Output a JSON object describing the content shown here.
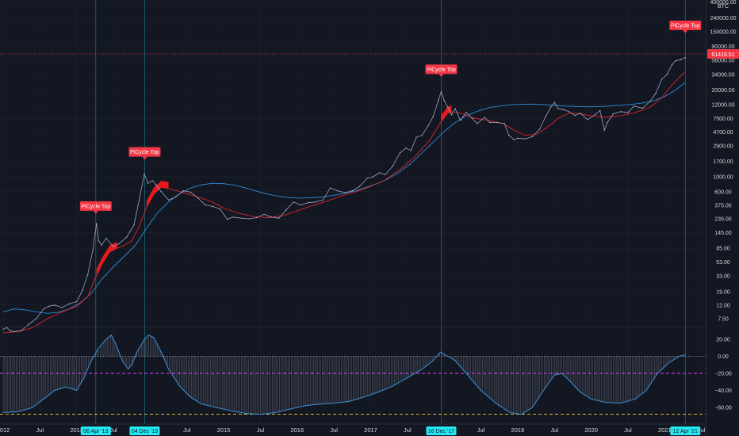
{
  "chart_data": {
    "type": "line",
    "symbol_unit": "BTC",
    "y_scale": "log",
    "current_price_label": "61419.51",
    "signal_label": "PiCycle Top",
    "y_ticks": [
      "400000.00",
      "240000.00",
      "150000.00",
      "90000.00",
      "56000.00",
      "34000.00",
      "20000.00",
      "12000.00",
      "7500.00",
      "4700.00",
      "2900.00",
      "1700.00",
      "1000.00",
      "600.00",
      "375.00",
      "235.00",
      "145.00",
      "85.00",
      "53.00",
      "33.00",
      "19.00",
      "12.00",
      "7.50"
    ],
    "x_ticks": [
      "2012",
      "Jul",
      "2013",
      "Jul",
      "2014",
      "Jul",
      "2015",
      "Jul",
      "2016",
      "Jul",
      "2017",
      "Jul",
      "2018",
      "Jul",
      "2019",
      "Jul",
      "2020",
      "Jul",
      "2021",
      "Jul"
    ],
    "pi_cycle_signals": [
      "06 Apr '13",
      "04 Dec '13",
      "16 Dec '17",
      "12 Apr '21"
    ],
    "series": [
      {
        "values": [
          [
            2012.0,
            5.2
          ],
          [
            2012.05,
            5.5
          ],
          [
            2012.1,
            4.9
          ],
          [
            2012.15,
            4.8
          ],
          [
            2012.25,
            5.0
          ],
          [
            2012.35,
            6.2
          ],
          [
            2012.45,
            7.5
          ],
          [
            2012.55,
            10.5
          ],
          [
            2012.62,
            11.5
          ],
          [
            2012.7,
            12.0
          ],
          [
            2012.8,
            11.0
          ],
          [
            2012.9,
            12.5
          ],
          [
            2013.0,
            13.5
          ],
          [
            2013.08,
            20
          ],
          [
            2013.15,
            34
          ],
          [
            2013.22,
            80
          ],
          [
            2013.27,
            200
          ],
          [
            2013.3,
            110
          ],
          [
            2013.34,
            95
          ],
          [
            2013.4,
            120
          ],
          [
            2013.5,
            90
          ],
          [
            2013.58,
            100
          ],
          [
            2013.68,
            125
          ],
          [
            2013.78,
            190
          ],
          [
            2013.85,
            450
          ],
          [
            2013.92,
            1100
          ],
          [
            2013.97,
            800
          ],
          [
            2014.03,
            880
          ],
          [
            2014.08,
            760
          ],
          [
            2014.15,
            600
          ],
          [
            2014.25,
            450
          ],
          [
            2014.35,
            500
          ],
          [
            2014.45,
            620
          ],
          [
            2014.55,
            590
          ],
          [
            2014.65,
            480
          ],
          [
            2014.75,
            380
          ],
          [
            2014.85,
            360
          ],
          [
            2014.95,
            330
          ],
          [
            2015.05,
            230
          ],
          [
            2015.12,
            250
          ],
          [
            2015.25,
            240
          ],
          [
            2015.35,
            235
          ],
          [
            2015.45,
            245
          ],
          [
            2015.55,
            275
          ],
          [
            2015.65,
            250
          ],
          [
            2015.75,
            240
          ],
          [
            2015.85,
            320
          ],
          [
            2015.95,
            420
          ],
          [
            2016.05,
            380
          ],
          [
            2016.15,
            410
          ],
          [
            2016.25,
            420
          ],
          [
            2016.35,
            450
          ],
          [
            2016.45,
            680
          ],
          [
            2016.55,
            620
          ],
          [
            2016.65,
            580
          ],
          [
            2016.75,
            620
          ],
          [
            2016.85,
            720
          ],
          [
            2016.95,
            950
          ],
          [
            2017.03,
            1000
          ],
          [
            2017.12,
            1150
          ],
          [
            2017.2,
            1080
          ],
          [
            2017.3,
            1450
          ],
          [
            2017.4,
            2300
          ],
          [
            2017.48,
            2700
          ],
          [
            2017.55,
            2500
          ],
          [
            2017.62,
            3900
          ],
          [
            2017.7,
            4200
          ],
          [
            2017.78,
            5800
          ],
          [
            2017.85,
            8000
          ],
          [
            2017.92,
            14000
          ],
          [
            2017.96,
            19000
          ],
          [
            2018.0,
            14000
          ],
          [
            2018.05,
            11000
          ],
          [
            2018.1,
            8500
          ],
          [
            2018.15,
            10500
          ],
          [
            2018.22,
            7000
          ],
          [
            2018.3,
            9200
          ],
          [
            2018.38,
            7500
          ],
          [
            2018.45,
            6300
          ],
          [
            2018.55,
            7800
          ],
          [
            2018.62,
            6500
          ],
          [
            2018.72,
            6500
          ],
          [
            2018.82,
            6300
          ],
          [
            2018.88,
            4200
          ],
          [
            2018.95,
            3600
          ],
          [
            2019.0,
            3800
          ],
          [
            2019.1,
            3700
          ],
          [
            2019.2,
            4000
          ],
          [
            2019.3,
            5200
          ],
          [
            2019.38,
            8000
          ],
          [
            2019.45,
            11000
          ],
          [
            2019.5,
            13000
          ],
          [
            2019.55,
            10500
          ],
          [
            2019.62,
            10200
          ],
          [
            2019.7,
            9500
          ],
          [
            2019.78,
            8300
          ],
          [
            2019.85,
            9000
          ],
          [
            2019.95,
            7200
          ],
          [
            2020.05,
            8500
          ],
          [
            2020.12,
            9800
          ],
          [
            2020.18,
            5000
          ],
          [
            2020.22,
            6500
          ],
          [
            2020.3,
            8800
          ],
          [
            2020.4,
            9500
          ],
          [
            2020.5,
            9200
          ],
          [
            2020.58,
            11500
          ],
          [
            2020.7,
            10700
          ],
          [
            2020.8,
            13500
          ],
          [
            2020.88,
            18000
          ],
          [
            2020.96,
            29000
          ],
          [
            2021.03,
            34000
          ],
          [
            2021.1,
            48000
          ],
          [
            2021.15,
            55000
          ],
          [
            2021.22,
            57000
          ],
          [
            2021.28,
            61419.51
          ]
        ]
      },
      {
        "values": [
          [
            2012.0,
            4.6
          ],
          [
            2012.2,
            4.8
          ],
          [
            2012.4,
            5.5
          ],
          [
            2012.6,
            7.5
          ],
          [
            2012.8,
            9.5
          ],
          [
            2013.0,
            11.5
          ],
          [
            2013.15,
            16
          ],
          [
            2013.25,
            30
          ],
          [
            2013.35,
            50
          ],
          [
            2013.45,
            75
          ],
          [
            2013.55,
            85
          ],
          [
            2013.65,
            95
          ],
          [
            2013.75,
            110
          ],
          [
            2013.85,
            180
          ],
          [
            2013.95,
            350
          ],
          [
            2014.05,
            550
          ],
          [
            2014.15,
            700
          ],
          [
            2014.3,
            650
          ],
          [
            2014.5,
            560
          ],
          [
            2014.7,
            480
          ],
          [
            2014.85,
            420
          ],
          [
            2015.0,
            340
          ],
          [
            2015.2,
            285
          ],
          [
            2015.4,
            255
          ],
          [
            2015.6,
            245
          ],
          [
            2015.8,
            260
          ],
          [
            2016.0,
            310
          ],
          [
            2016.2,
            370
          ],
          [
            2016.4,
            430
          ],
          [
            2016.6,
            520
          ],
          [
            2016.8,
            600
          ],
          [
            2017.0,
            720
          ],
          [
            2017.2,
            900
          ],
          [
            2017.4,
            1300
          ],
          [
            2017.6,
            2000
          ],
          [
            2017.8,
            3500
          ],
          [
            2017.95,
            6500
          ],
          [
            2018.05,
            9000
          ],
          [
            2018.12,
            9500
          ],
          [
            2018.25,
            8800
          ],
          [
            2018.4,
            7600
          ],
          [
            2018.6,
            7000
          ],
          [
            2018.8,
            6300
          ],
          [
            2018.95,
            5000
          ],
          [
            2019.1,
            4200
          ],
          [
            2019.25,
            4300
          ],
          [
            2019.4,
            5500
          ],
          [
            2019.55,
            7500
          ],
          [
            2019.7,
            9000
          ],
          [
            2019.85,
            8800
          ],
          [
            2020.0,
            8200
          ],
          [
            2020.2,
            7800
          ],
          [
            2020.4,
            8200
          ],
          [
            2020.6,
            9200
          ],
          [
            2020.8,
            11000
          ],
          [
            2020.95,
            15000
          ],
          [
            2021.1,
            24000
          ],
          [
            2021.28,
            38000
          ]
        ]
      },
      {
        "values": [
          [
            2012.0,
            9.5
          ],
          [
            2012.15,
            10.5
          ],
          [
            2012.3,
            10.2
          ],
          [
            2012.45,
            9.5
          ],
          [
            2012.6,
            9.0
          ],
          [
            2012.75,
            9.3
          ],
          [
            2012.9,
            10.5
          ],
          [
            2013.05,
            13
          ],
          [
            2013.2,
            18
          ],
          [
            2013.35,
            30
          ],
          [
            2013.5,
            45
          ],
          [
            2013.65,
            65
          ],
          [
            2013.8,
            95
          ],
          [
            2013.95,
            170
          ],
          [
            2014.1,
            290
          ],
          [
            2014.25,
            420
          ],
          [
            2014.4,
            560
          ],
          [
            2014.55,
            680
          ],
          [
            2014.7,
            760
          ],
          [
            2014.85,
            800
          ],
          [
            2015.0,
            790
          ],
          [
            2015.15,
            750
          ],
          [
            2015.3,
            680
          ],
          [
            2015.45,
            610
          ],
          [
            2015.6,
            550
          ],
          [
            2015.75,
            510
          ],
          [
            2015.9,
            490
          ],
          [
            2016.05,
            480
          ],
          [
            2016.2,
            485
          ],
          [
            2016.35,
            500
          ],
          [
            2016.5,
            530
          ],
          [
            2016.65,
            570
          ],
          [
            2016.8,
            620
          ],
          [
            2016.95,
            700
          ],
          [
            2017.1,
            800
          ],
          [
            2017.25,
            950
          ],
          [
            2017.4,
            1200
          ],
          [
            2017.55,
            1600
          ],
          [
            2017.7,
            2300
          ],
          [
            2017.85,
            3300
          ],
          [
            2018.0,
            4800
          ],
          [
            2018.15,
            6500
          ],
          [
            2018.3,
            8200
          ],
          [
            2018.45,
            9600
          ],
          [
            2018.6,
            10800
          ],
          [
            2018.75,
            11500
          ],
          [
            2018.9,
            12000
          ],
          [
            2019.05,
            12200
          ],
          [
            2019.2,
            12300
          ],
          [
            2019.35,
            12100
          ],
          [
            2019.5,
            11800
          ],
          [
            2019.65,
            11500
          ],
          [
            2019.8,
            11300
          ],
          [
            2019.95,
            11200
          ],
          [
            2020.1,
            11300
          ],
          [
            2020.25,
            11500
          ],
          [
            2020.4,
            11800
          ],
          [
            2020.55,
            12200
          ],
          [
            2020.7,
            12800
          ],
          [
            2020.85,
            13800
          ],
          [
            2021.0,
            16000
          ],
          [
            2021.15,
            20000
          ],
          [
            2021.28,
            26000
          ]
        ]
      }
    ],
    "oscillator": {
      "y_ticks": [
        "20.00",
        "0.00",
        "−20.00",
        "−40.00",
        "−60.00"
      ],
      "ylim": [
        -72,
        32
      ],
      "levels": [
        0,
        -20,
        -68
      ],
      "values": [
        [
          2012.0,
          -66
        ],
        [
          2012.2,
          -65
        ],
        [
          2012.4,
          -60
        ],
        [
          2012.55,
          -50
        ],
        [
          2012.7,
          -40
        ],
        [
          2012.85,
          -36
        ],
        [
          2013.0,
          -40
        ],
        [
          2013.1,
          -25
        ],
        [
          2013.2,
          -5
        ],
        [
          2013.3,
          10
        ],
        [
          2013.4,
          20
        ],
        [
          2013.47,
          25
        ],
        [
          2013.53,
          15
        ],
        [
          2013.62,
          -5
        ],
        [
          2013.7,
          -15
        ],
        [
          2013.75,
          -10
        ],
        [
          2013.82,
          5
        ],
        [
          2013.92,
          20
        ],
        [
          2013.98,
          25
        ],
        [
          2014.05,
          22
        ],
        [
          2014.15,
          5
        ],
        [
          2014.25,
          -15
        ],
        [
          2014.4,
          -35
        ],
        [
          2014.55,
          -48
        ],
        [
          2014.7,
          -56
        ],
        [
          2014.9,
          -60
        ],
        [
          2015.1,
          -64
        ],
        [
          2015.3,
          -67
        ],
        [
          2015.5,
          -68
        ],
        [
          2015.7,
          -66
        ],
        [
          2015.9,
          -62
        ],
        [
          2016.1,
          -58
        ],
        [
          2016.3,
          -56
        ],
        [
          2016.5,
          -55
        ],
        [
          2016.7,
          -53
        ],
        [
          2016.9,
          -48
        ],
        [
          2017.1,
          -42
        ],
        [
          2017.3,
          -35
        ],
        [
          2017.5,
          -25
        ],
        [
          2017.7,
          -15
        ],
        [
          2017.85,
          -5
        ],
        [
          2017.95,
          5
        ],
        [
          2018.05,
          0
        ],
        [
          2018.15,
          -5
        ],
        [
          2018.3,
          -20
        ],
        [
          2018.5,
          -40
        ],
        [
          2018.7,
          -55
        ],
        [
          2018.9,
          -66
        ],
        [
          2019.05,
          -68
        ],
        [
          2019.2,
          -60
        ],
        [
          2019.35,
          -40
        ],
        [
          2019.5,
          -22
        ],
        [
          2019.6,
          -20
        ],
        [
          2019.7,
          -28
        ],
        [
          2019.85,
          -42
        ],
        [
          2020.0,
          -50
        ],
        [
          2020.2,
          -54
        ],
        [
          2020.4,
          -55
        ],
        [
          2020.6,
          -50
        ],
        [
          2020.75,
          -40
        ],
        [
          2020.9,
          -20
        ],
        [
          2021.05,
          -8
        ],
        [
          2021.2,
          0
        ],
        [
          2021.28,
          2
        ]
      ]
    }
  }
}
